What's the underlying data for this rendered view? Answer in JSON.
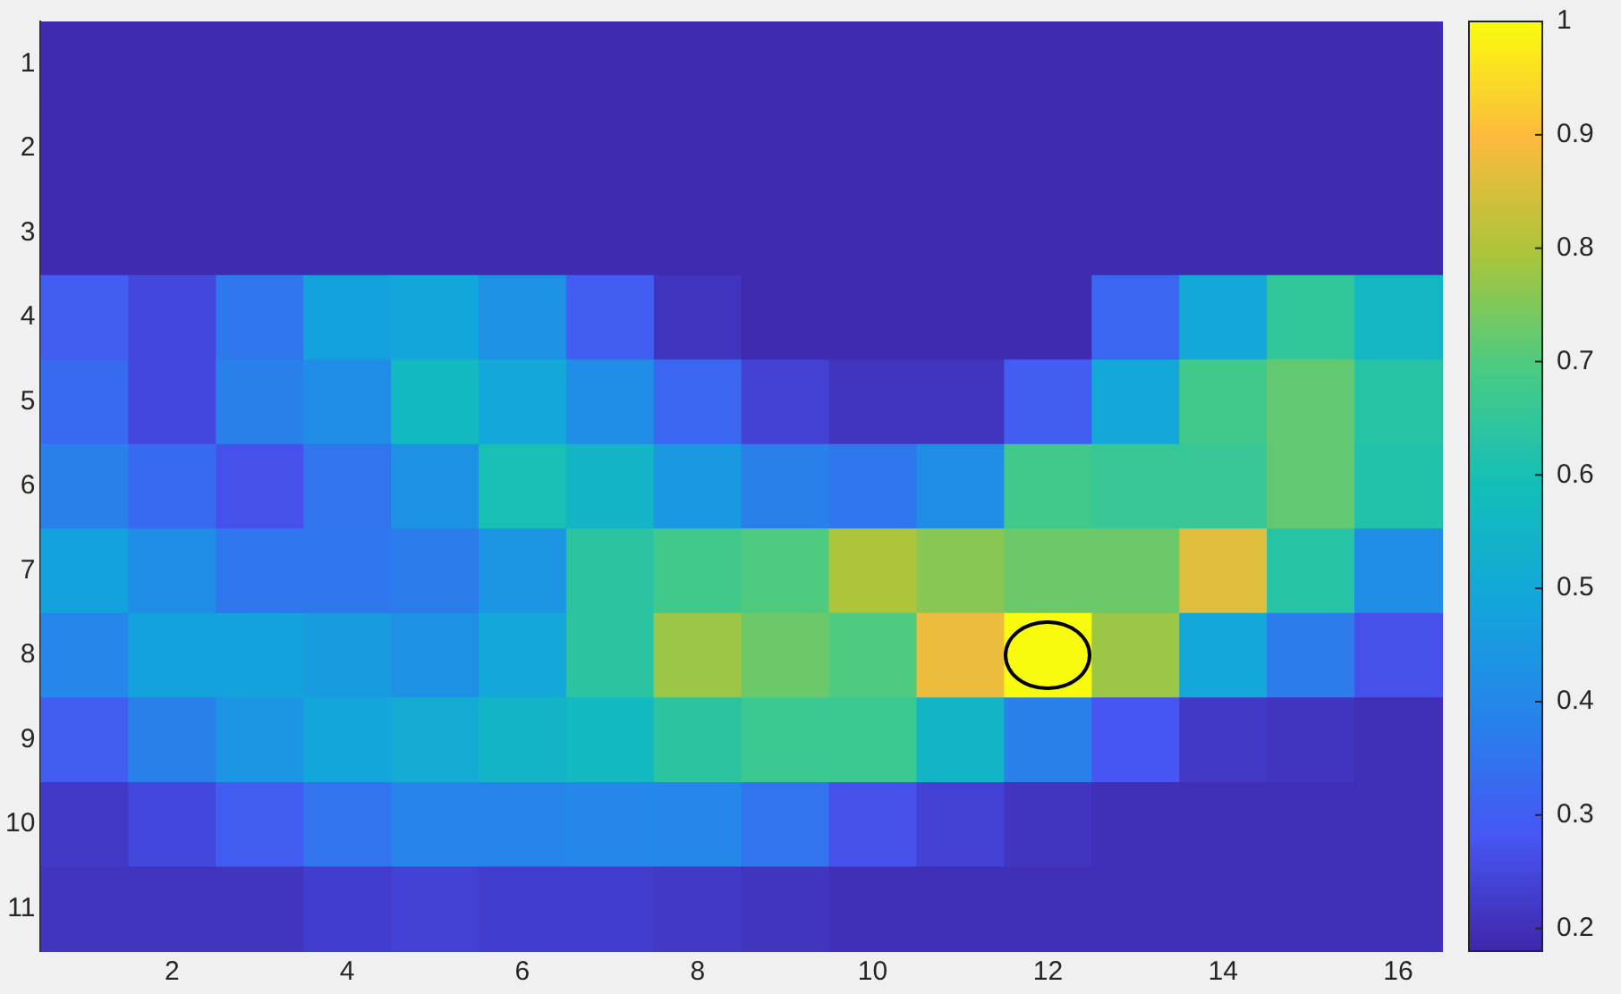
{
  "chart_data": {
    "type": "heatmap",
    "categories": [
      null,
      "2",
      null,
      "4",
      null,
      "6",
      null,
      "8",
      null,
      "10",
      null,
      "12",
      null,
      "14",
      null,
      "16"
    ],
    "y_categories": [
      "1",
      "2",
      "3",
      "4",
      "5",
      "6",
      "7",
      "8",
      "9",
      "10",
      "11"
    ],
    "cells": [
      [
        0.19,
        0.19,
        0.19,
        0.19,
        0.19,
        0.19,
        0.19,
        0.19,
        0.19,
        0.19,
        0.19,
        0.19,
        0.19,
        0.19,
        0.19,
        0.19
      ],
      [
        0.19,
        0.19,
        0.19,
        0.19,
        0.19,
        0.19,
        0.19,
        0.19,
        0.19,
        0.19,
        0.19,
        0.19,
        0.19,
        0.19,
        0.19,
        0.19
      ],
      [
        0.19,
        0.19,
        0.19,
        0.19,
        0.19,
        0.19,
        0.19,
        0.19,
        0.19,
        0.19,
        0.19,
        0.19,
        0.19,
        0.19,
        0.19,
        0.19
      ],
      [
        0.3,
        0.25,
        0.36,
        0.48,
        0.49,
        0.43,
        0.3,
        0.21,
        0.19,
        0.19,
        0.19,
        0.19,
        0.32,
        0.5,
        0.65,
        0.56
      ],
      [
        0.33,
        0.25,
        0.38,
        0.42,
        0.57,
        0.5,
        0.42,
        0.32,
        0.24,
        0.21,
        0.21,
        0.3,
        0.5,
        0.68,
        0.72,
        0.63
      ],
      [
        0.38,
        0.33,
        0.27,
        0.35,
        0.43,
        0.6,
        0.55,
        0.45,
        0.38,
        0.36,
        0.42,
        0.68,
        0.66,
        0.66,
        0.72,
        0.62
      ],
      [
        0.48,
        0.42,
        0.36,
        0.36,
        0.37,
        0.44,
        0.64,
        0.68,
        0.7,
        0.8,
        0.76,
        0.73,
        0.73,
        0.86,
        0.63,
        0.42
      ],
      [
        0.4,
        0.48,
        0.48,
        0.46,
        0.43,
        0.5,
        0.64,
        0.78,
        0.73,
        0.7,
        0.88,
        1.0,
        0.78,
        0.5,
        0.37,
        0.27
      ],
      [
        0.3,
        0.38,
        0.44,
        0.49,
        0.51,
        0.55,
        0.57,
        0.64,
        0.67,
        0.67,
        0.55,
        0.38,
        0.28,
        0.22,
        0.21,
        0.2
      ],
      [
        0.22,
        0.25,
        0.3,
        0.35,
        0.39,
        0.39,
        0.4,
        0.4,
        0.35,
        0.27,
        0.24,
        0.21,
        0.2,
        0.2,
        0.2,
        0.2
      ],
      [
        0.21,
        0.21,
        0.21,
        0.23,
        0.24,
        0.23,
        0.23,
        0.22,
        0.21,
        0.2,
        0.2,
        0.2,
        0.2,
        0.2,
        0.2,
        0.2
      ]
    ],
    "clim": [
      0.18,
      1
    ],
    "cticks": [
      0.2,
      0.3,
      0.4,
      0.5,
      0.6,
      0.7,
      0.8,
      0.9,
      1
    ]
  }
}
